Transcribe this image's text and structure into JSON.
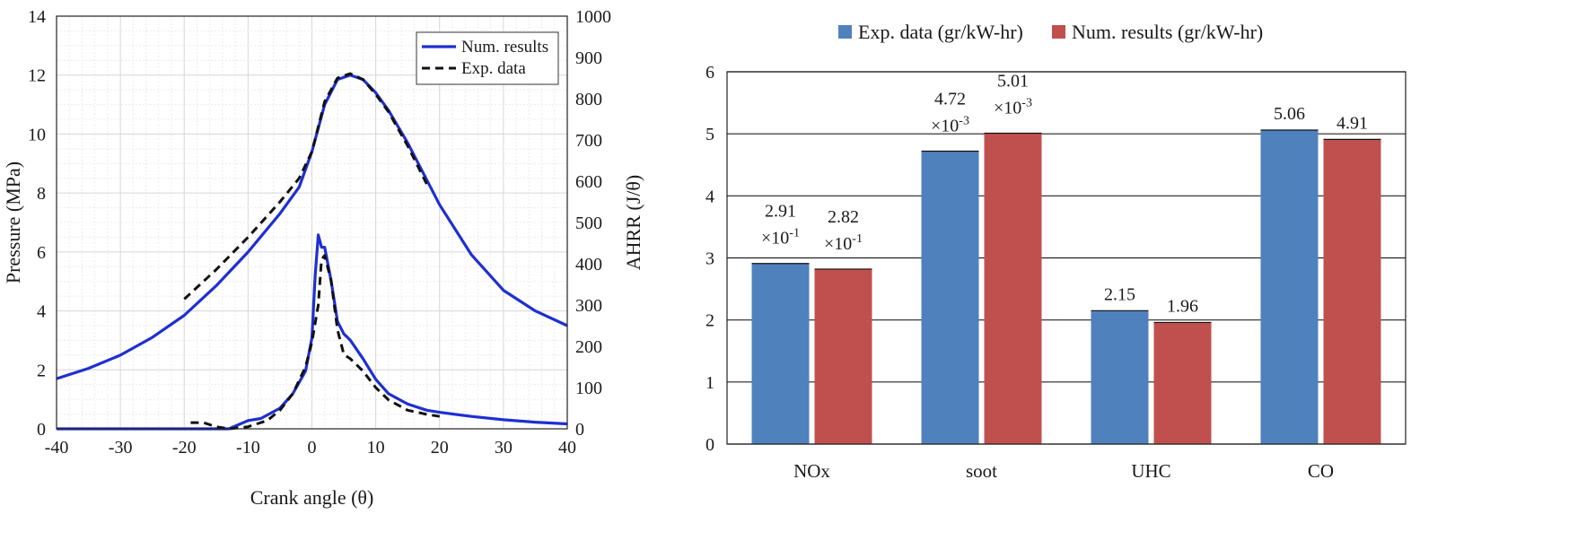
{
  "chart_data": [
    {
      "type": "line",
      "xlabel": "Crank angle (θ)",
      "ylabel": "Pressure (MPa)",
      "y2label": "AHRR (J/θ)",
      "xlim": [
        -40,
        40
      ],
      "ylim": [
        0,
        14
      ],
      "y2lim": [
        0,
        1000
      ],
      "xticks": [
        "-40",
        "-30",
        "-20",
        "-10",
        "0",
        "10",
        "20",
        "30",
        "40"
      ],
      "yticks": [
        "0",
        "2",
        "4",
        "6",
        "8",
        "10",
        "12",
        "14"
      ],
      "y2ticks": [
        "0",
        "100",
        "200",
        "300",
        "400",
        "500",
        "600",
        "700",
        "800",
        "900",
        "1000"
      ],
      "grid": true,
      "legend_position": "top-right",
      "series": [
        {
          "name": "Num. results",
          "axis": "pressure",
          "style": "solid",
          "color": "#1f2fd1",
          "x": [
            -40,
            -35,
            -30,
            -25,
            -20,
            -15,
            -10,
            -5,
            -2,
            0,
            2,
            4,
            6,
            8,
            10,
            12,
            15,
            20,
            25,
            30,
            35,
            40
          ],
          "y": [
            1.7,
            2.05,
            2.5,
            3.1,
            3.85,
            4.85,
            6.0,
            7.3,
            8.2,
            9.4,
            11.0,
            11.85,
            12.0,
            11.85,
            11.4,
            10.8,
            9.7,
            7.6,
            5.9,
            4.7,
            4.0,
            3.5
          ]
        },
        {
          "name": "Exp. data",
          "axis": "pressure",
          "style": "dashed",
          "color": "#111111",
          "x": [
            -20,
            -15,
            -10,
            -5,
            -2,
            0,
            2,
            4,
            6,
            8,
            10,
            12,
            15,
            18
          ],
          "y": [
            4.4,
            5.4,
            6.5,
            7.7,
            8.5,
            9.4,
            11.1,
            11.9,
            12.05,
            11.85,
            11.35,
            10.75,
            9.6,
            8.3
          ]
        },
        {
          "name": "",
          "axis": "ahrr",
          "style": "solid",
          "color": "#1f2fd1",
          "x": [
            -40,
            -20,
            -13,
            -10,
            -8,
            -5,
            -3,
            -1,
            0,
            0.5,
            1,
            1.5,
            2,
            3,
            4,
            5,
            6,
            8,
            10,
            12,
            15,
            18,
            20,
            25,
            30,
            35,
            40
          ],
          "y": [
            0,
            0,
            0,
            20,
            25,
            50,
            85,
            140,
            220,
            370,
            470,
            440,
            440,
            360,
            260,
            230,
            215,
            170,
            120,
            85,
            60,
            45,
            40,
            30,
            22,
            16,
            12
          ]
        },
        {
          "name": "",
          "axis": "ahrr",
          "style": "dashed",
          "color": "#111111",
          "x": [
            -19,
            -17,
            -15,
            -13,
            -10,
            -7,
            -5,
            -3,
            -1,
            0,
            1,
            1.5,
            2,
            3,
            4,
            5,
            6,
            8,
            10,
            12,
            15,
            18,
            20
          ],
          "y": [
            15,
            15,
            5,
            0,
            5,
            20,
            45,
            85,
            150,
            210,
            300,
            410,
            420,
            360,
            240,
            180,
            170,
            140,
            100,
            70,
            45,
            35,
            30
          ]
        }
      ]
    },
    {
      "type": "bar",
      "categories": [
        "NOx",
        "soot",
        "UHC",
        "CO"
      ],
      "ylim": [
        0,
        6
      ],
      "yticks": [
        "0",
        "1",
        "2",
        "3",
        "4",
        "5",
        "6"
      ],
      "grid": true,
      "legend_position": "top",
      "series": [
        {
          "name": "Exp. data (gr/kW-hr)",
          "color": "#4f81bd",
          "values": [
            2.91,
            4.72,
            2.15,
            5.06
          ],
          "labels": [
            {
              "line1": "2.91",
              "line2": "×10",
              "exp": "-1"
            },
            {
              "line1": "4.72",
              "line2": "×10",
              "exp": "-3"
            },
            {
              "line1": "2.15",
              "line2": "",
              "exp": ""
            },
            {
              "line1": "5.06",
              "line2": "",
              "exp": ""
            }
          ]
        },
        {
          "name": "Num. results (gr/kW-hr)",
          "color": "#c0504d",
          "values": [
            2.82,
            5.01,
            1.96,
            4.91
          ],
          "labels": [
            {
              "line1": "2.82",
              "line2": "×10",
              "exp": "-1"
            },
            {
              "line1": "5.01",
              "line2": "×10",
              "exp": "-3"
            },
            {
              "line1": "1.96",
              "line2": "",
              "exp": ""
            },
            {
              "line1": "4.91",
              "line2": "",
              "exp": ""
            }
          ]
        }
      ]
    }
  ]
}
